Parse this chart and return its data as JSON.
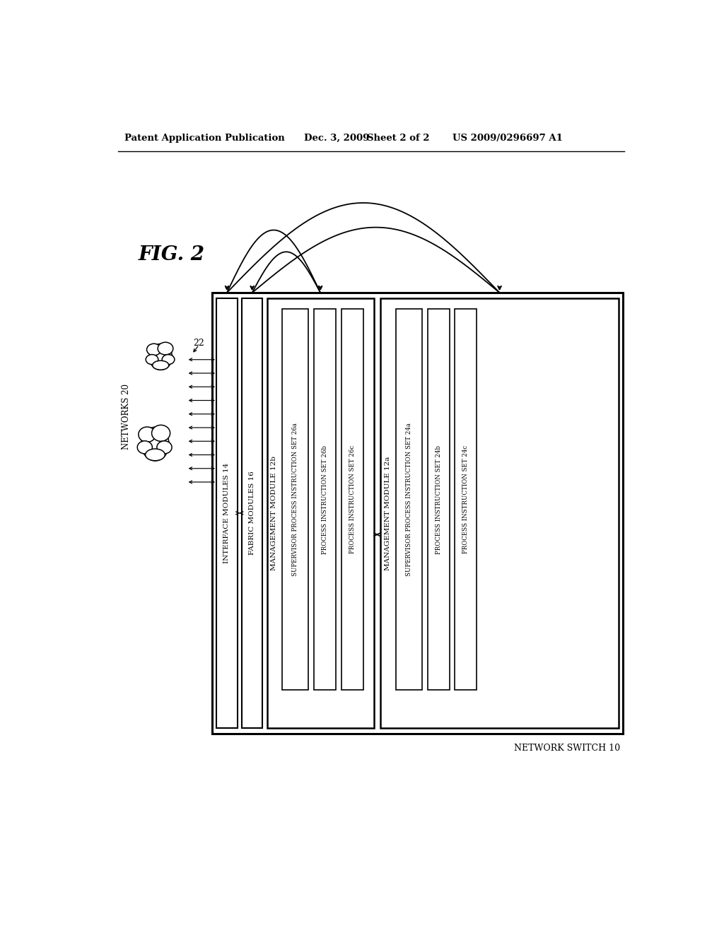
{
  "header_left": "Patent Application Publication",
  "header_date": "Dec. 3, 2009",
  "header_sheet": "Sheet 2 of 2",
  "header_patent": "US 2009/0296697 A1",
  "fig_label": "FIG. 2",
  "bg_color": "#ffffff",
  "network_switch_label": "NETWORK SWITCH 10",
  "fabric_modules_label": "FABRIC MODULES 16",
  "interface_modules_label": "INTERFACE MODULES 14",
  "networks_label": "NETWORKS 20",
  "network_label_22": "22",
  "mgmt_module_12b": "MANAGEMENT MODULE 12b",
  "sup_proc_26a": "SUPERVISOR PROCESS INSTRUCTION SET 26a",
  "proc_26b": "PROCESS INSTRUCTION SET 26b",
  "proc_26c": "PROCESS INSTRUCTION SET 26c",
  "mgmt_module_12a": "MANAGEMENT MODULE 12a",
  "sup_proc_24a": "SUPERVISOR PROCESS INSTRUCTION SET 24a",
  "proc_24b": "PROCESS INSTRUCTION SET 24b",
  "proc_24c": "PROCESS INSTRUCTION SET 24c"
}
